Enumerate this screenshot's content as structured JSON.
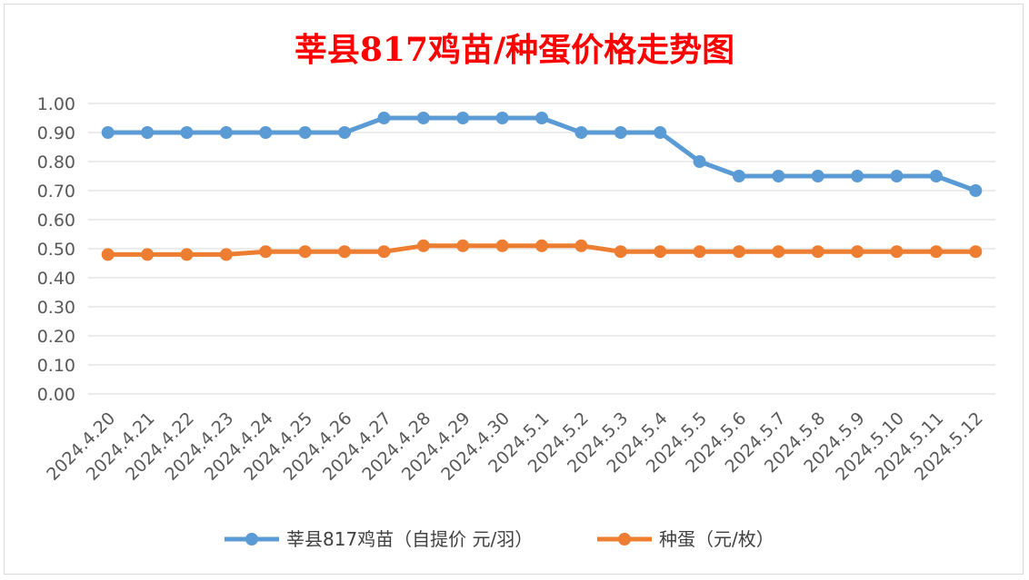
{
  "chart_data": {
    "type": "line",
    "title": "莘县817鸡苗/种蛋价格走势图",
    "categories": [
      "2024.4.20",
      "2024.4.21",
      "2024.4.22",
      "2024.4.23",
      "2024.4.24",
      "2024.4.25",
      "2024.4.26",
      "2024.4.27",
      "2024.4.28",
      "2024.4.29",
      "2024.4.30",
      "2024.5.1",
      "2024.5.2",
      "2024.5.3",
      "2024.5.4",
      "2024.5.5",
      "2024.5.6",
      "2024.5.7",
      "2024.5.8",
      "2024.5.9",
      "2024.5.10",
      "2024.5.11",
      "2024.5.12"
    ],
    "series": [
      {
        "name": "莘县817鸡苗（自提价 元/羽）",
        "color": "#5b9bd5",
        "values": [
          0.9,
          0.9,
          0.9,
          0.9,
          0.9,
          0.9,
          0.9,
          0.95,
          0.95,
          0.95,
          0.95,
          0.95,
          0.9,
          0.9,
          0.9,
          0.8,
          0.75,
          0.75,
          0.75,
          0.75,
          0.75,
          0.75,
          0.7
        ]
      },
      {
        "name": "种蛋（元/枚）",
        "color": "#ed7d31",
        "values": [
          0.48,
          0.48,
          0.48,
          0.48,
          0.49,
          0.49,
          0.49,
          0.49,
          0.51,
          0.51,
          0.51,
          0.51,
          0.51,
          0.49,
          0.49,
          0.49,
          0.49,
          0.49,
          0.49,
          0.49,
          0.49,
          0.49,
          0.49
        ]
      }
    ],
    "ylim": [
      0,
      1.0
    ],
    "yticks": [
      "0.00",
      "0.10",
      "0.20",
      "0.30",
      "0.40",
      "0.50",
      "0.60",
      "0.70",
      "0.80",
      "0.90",
      "1.00"
    ],
    "grid": true,
    "legend": "bottom"
  }
}
